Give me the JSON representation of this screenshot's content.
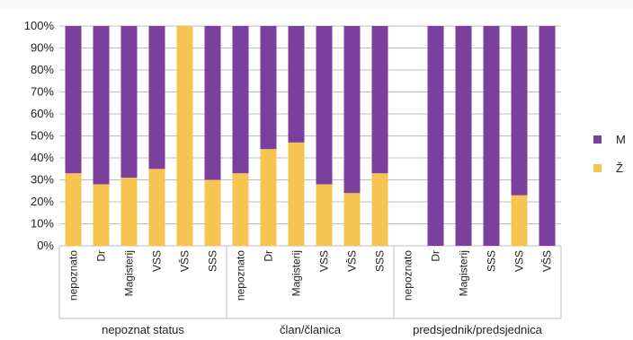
{
  "chart_data": {
    "type": "bar",
    "stacked": true,
    "percent": true,
    "title": "",
    "xlabel": "",
    "ylabel": "",
    "ylim": [
      0,
      100
    ],
    "y_ticks": [
      "0%",
      "10%",
      "20%",
      "30%",
      "40%",
      "50%",
      "60%",
      "70%",
      "80%",
      "90%",
      "100%"
    ],
    "groups": [
      {
        "label": "nepoznat status",
        "categories": [
          "nepoznato",
          "Dr",
          "Magisterij",
          "VSS",
          "VŠS",
          "SSS"
        ]
      },
      {
        "label": "član/članica",
        "categories": [
          "nepoznato",
          "Dr",
          "Magisterij",
          "VSS",
          "VŠS",
          "SSS"
        ]
      },
      {
        "label": "predsjednik/predsjednica",
        "categories": [
          "nepoznato",
          "Dr",
          "Magisterij",
          "SSS",
          "VSS",
          "VŠS"
        ]
      }
    ],
    "series": [
      {
        "name": "Ž",
        "color": "#F5C451",
        "values": [
          33,
          28,
          31,
          35,
          100,
          30,
          33,
          44,
          47,
          28,
          24,
          33,
          0,
          0,
          0,
          0,
          23,
          0
        ]
      },
      {
        "name": "M",
        "color": "#7B3F9E",
        "values": [
          67,
          72,
          69,
          65,
          0,
          70,
          67,
          56,
          53,
          72,
          76,
          67,
          0,
          100,
          100,
          100,
          77,
          100
        ]
      }
    ],
    "legend": {
      "position": "right",
      "order": [
        "M",
        "Ž"
      ]
    },
    "grid": true,
    "colors": {
      "gridline": "#bfbfbf",
      "axis": "#bfbfbf",
      "text": "#222222"
    }
  }
}
